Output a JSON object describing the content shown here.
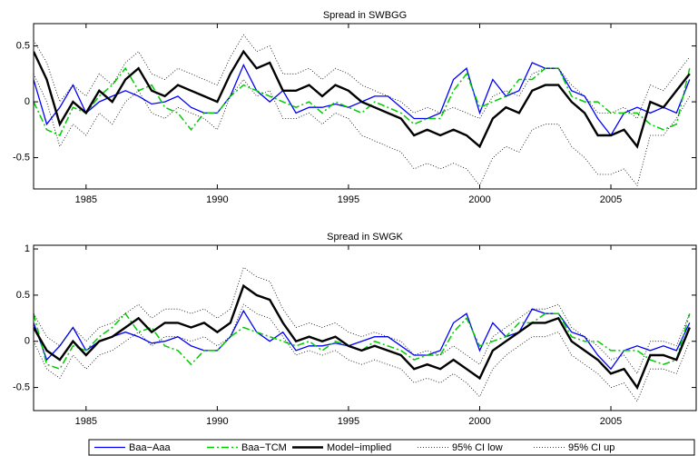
{
  "chart_data": [
    {
      "type": "line",
      "title": "Spread in SWBGG",
      "x": [
        1983,
        1983.5,
        1984,
        1984.5,
        1985,
        1985.5,
        1986,
        1986.5,
        1987,
        1987.5,
        1988,
        1988.5,
        1989,
        1989.5,
        1990,
        1990.5,
        1991,
        1991.5,
        1992,
        1992.5,
        1993,
        1993.5,
        1994,
        1994.5,
        1995,
        1995.5,
        1996,
        1996.5,
        1997,
        1997.5,
        1998,
        1998.5,
        1999,
        1999.5,
        2000,
        2000.5,
        2001,
        2001.5,
        2002,
        2002.5,
        2003,
        2003.5,
        2004,
        2004.5,
        2005,
        2005.5,
        2006,
        2006.5,
        2007,
        2007.5,
        2008
      ],
      "xlim": [
        1983,
        2008.25
      ],
      "ylim": [
        -0.78,
        0.7
      ],
      "xticks": [
        1985,
        1990,
        1995,
        2000,
        2005
      ],
      "yticks": [
        -0.5,
        0,
        0.5
      ],
      "series": [
        {
          "name": "Baa−Aaa",
          "color": "#0000ff",
          "style": "solid",
          "values": [
            0.2,
            -0.2,
            -0.05,
            0.15,
            -0.1,
            0.0,
            0.05,
            0.1,
            0.05,
            -0.02,
            0.0,
            0.05,
            -0.05,
            -0.1,
            -0.1,
            0.05,
            0.33,
            0.1,
            0.0,
            0.1,
            -0.1,
            -0.05,
            -0.05,
            -0.02,
            -0.05,
            0.0,
            0.05,
            0.05,
            -0.05,
            -0.15,
            -0.15,
            -0.1,
            0.2,
            0.3,
            -0.1,
            0.2,
            0.05,
            0.1,
            0.35,
            0.3,
            0.3,
            0.1,
            0.05,
            -0.15,
            -0.3,
            -0.1,
            -0.05,
            -0.1,
            -0.05,
            -0.1,
            0.2
          ]
        },
        {
          "name": "Baa−TCM",
          "color": "#00cc00",
          "style": "dashdot",
          "values": [
            0.0,
            -0.25,
            -0.3,
            -0.05,
            -0.1,
            0.05,
            0.15,
            0.3,
            0.1,
            0.15,
            -0.05,
            -0.1,
            -0.25,
            -0.1,
            -0.1,
            0.05,
            0.15,
            0.1,
            0.05,
            0.0,
            -0.05,
            0.0,
            -0.1,
            0.0,
            -0.05,
            -0.1,
            0.0,
            -0.05,
            -0.1,
            -0.2,
            -0.15,
            -0.15,
            0.1,
            0.25,
            -0.05,
            0.0,
            0.05,
            0.2,
            0.2,
            0.3,
            0.3,
            0.05,
            0.0,
            0.0,
            -0.1,
            -0.1,
            -0.1,
            -0.2,
            -0.25,
            -0.2,
            0.3
          ]
        },
        {
          "name": "Model−implied",
          "color": "#000000",
          "style": "thick",
          "values": [
            0.45,
            0.2,
            -0.2,
            0.0,
            -0.1,
            0.1,
            0.0,
            0.2,
            0.3,
            0.1,
            0.05,
            0.15,
            0.1,
            0.05,
            0.0,
            0.25,
            0.45,
            0.3,
            0.35,
            0.1,
            0.1,
            0.15,
            0.05,
            0.15,
            0.1,
            0.0,
            -0.05,
            -0.1,
            -0.15,
            -0.3,
            -0.25,
            -0.3,
            -0.25,
            -0.3,
            -0.4,
            -0.15,
            -0.05,
            -0.1,
            0.1,
            0.15,
            0.15,
            0.0,
            -0.1,
            -0.3,
            -0.3,
            -0.25,
            -0.4,
            0.0,
            -0.05,
            0.1,
            0.25
          ]
        },
        {
          "name": "95% CI low",
          "color": "#000000",
          "style": "dotted",
          "values": [
            0.25,
            0.0,
            -0.4,
            -0.2,
            -0.3,
            -0.1,
            -0.2,
            0.0,
            0.1,
            -0.1,
            -0.15,
            -0.05,
            -0.1,
            -0.15,
            -0.25,
            0.05,
            0.2,
            0.05,
            0.1,
            -0.15,
            -0.15,
            -0.1,
            -0.2,
            -0.1,
            -0.15,
            -0.3,
            -0.35,
            -0.4,
            -0.45,
            -0.6,
            -0.55,
            -0.6,
            -0.55,
            -0.6,
            -0.75,
            -0.5,
            -0.4,
            -0.45,
            -0.25,
            -0.2,
            -0.2,
            -0.4,
            -0.5,
            -0.65,
            -0.65,
            -0.6,
            -0.75,
            -0.3,
            -0.3,
            -0.15,
            0.05
          ]
        },
        {
          "name": "95% CI up",
          "color": "#000000",
          "style": "dotted",
          "values": [
            0.55,
            0.35,
            0.0,
            0.15,
            0.05,
            0.25,
            0.15,
            0.35,
            0.45,
            0.25,
            0.2,
            0.3,
            0.25,
            0.2,
            0.15,
            0.4,
            0.6,
            0.45,
            0.5,
            0.25,
            0.25,
            0.3,
            0.2,
            0.3,
            0.25,
            0.15,
            0.1,
            0.05,
            0.0,
            -0.1,
            -0.05,
            -0.1,
            -0.05,
            -0.1,
            -0.15,
            0.05,
            0.1,
            0.05,
            0.25,
            0.3,
            0.3,
            0.15,
            0.05,
            -0.1,
            -0.1,
            -0.05,
            -0.15,
            0.15,
            0.1,
            0.25,
            0.4
          ]
        }
      ]
    },
    {
      "type": "line",
      "title": "Spread in SWGK",
      "x": [
        1983,
        1983.5,
        1984,
        1984.5,
        1985,
        1985.5,
        1986,
        1986.5,
        1987,
        1987.5,
        1988,
        1988.5,
        1989,
        1989.5,
        1990,
        1990.5,
        1991,
        1991.5,
        1992,
        1992.5,
        1993,
        1993.5,
        1994,
        1994.5,
        1995,
        1995.5,
        1996,
        1996.5,
        1997,
        1997.5,
        1998,
        1998.5,
        1999,
        1999.5,
        2000,
        2000.5,
        2001,
        2001.5,
        2002,
        2002.5,
        2003,
        2003.5,
        2004,
        2004.5,
        2005,
        2005.5,
        2006,
        2006.5,
        2007,
        2007.5,
        2008
      ],
      "xlim": [
        1983,
        2008.25
      ],
      "ylim": [
        -0.75,
        1.04
      ],
      "xticks": [
        1985,
        1990,
        1995,
        2000,
        2005
      ],
      "yticks": [
        -0.5,
        0,
        0.5,
        1
      ],
      "series": [
        {
          "color": "#0000ff",
          "style": "solid",
          "values": [
            0.2,
            -0.2,
            -0.05,
            0.15,
            -0.1,
            0.0,
            0.05,
            0.1,
            0.05,
            -0.02,
            0.0,
            0.05,
            -0.05,
            -0.1,
            -0.1,
            0.05,
            0.33,
            0.1,
            0.0,
            0.1,
            -0.1,
            -0.05,
            -0.05,
            -0.02,
            -0.05,
            0.0,
            0.05,
            0.05,
            -0.05,
            -0.15,
            -0.15,
            -0.1,
            0.2,
            0.3,
            -0.1,
            0.2,
            0.05,
            0.1,
            0.35,
            0.3,
            0.3,
            0.1,
            0.05,
            -0.15,
            -0.3,
            -0.1,
            -0.05,
            -0.1,
            -0.05,
            -0.1,
            0.2
          ]
        },
        {
          "color": "#00cc00",
          "style": "dashdot",
          "values": [
            0.3,
            -0.25,
            -0.3,
            -0.05,
            -0.1,
            0.05,
            0.15,
            0.3,
            0.1,
            0.15,
            -0.05,
            -0.1,
            -0.25,
            -0.1,
            -0.1,
            0.05,
            0.15,
            0.1,
            0.05,
            0.0,
            -0.05,
            0.0,
            -0.1,
            0.0,
            -0.05,
            -0.1,
            0.0,
            -0.05,
            -0.1,
            -0.2,
            -0.15,
            -0.15,
            0.1,
            0.25,
            -0.05,
            0.0,
            0.05,
            0.2,
            0.2,
            0.3,
            0.3,
            0.05,
            0.0,
            0.0,
            -0.1,
            -0.1,
            -0.1,
            -0.2,
            -0.25,
            -0.2,
            0.3
          ]
        },
        {
          "color": "#000000",
          "style": "thick",
          "values": [
            0.15,
            -0.1,
            -0.2,
            0.0,
            -0.15,
            0.0,
            0.05,
            0.15,
            0.25,
            0.1,
            0.2,
            0.2,
            0.15,
            0.2,
            0.1,
            0.2,
            0.6,
            0.5,
            0.45,
            0.2,
            0.0,
            0.05,
            0.0,
            0.05,
            -0.05,
            -0.1,
            -0.05,
            -0.1,
            -0.15,
            -0.3,
            -0.25,
            -0.3,
            -0.2,
            -0.3,
            -0.4,
            -0.1,
            0.0,
            0.1,
            0.2,
            0.2,
            0.25,
            0.0,
            -0.1,
            -0.2,
            -0.35,
            -0.3,
            -0.5,
            -0.15,
            -0.15,
            -0.2,
            0.15
          ]
        },
        {
          "color": "#000000",
          "style": "dotted",
          "values": [
            0.0,
            -0.3,
            -0.4,
            -0.15,
            -0.3,
            -0.15,
            -0.1,
            0.0,
            0.1,
            -0.05,
            0.05,
            0.05,
            0.0,
            0.05,
            -0.05,
            0.05,
            0.4,
            0.3,
            0.25,
            0.05,
            -0.15,
            -0.1,
            -0.15,
            -0.1,
            -0.2,
            -0.25,
            -0.2,
            -0.25,
            -0.3,
            -0.45,
            -0.4,
            -0.45,
            -0.35,
            -0.45,
            -0.6,
            -0.3,
            -0.15,
            -0.05,
            0.05,
            0.05,
            0.1,
            -0.15,
            -0.25,
            -0.35,
            -0.5,
            -0.45,
            -0.65,
            -0.3,
            -0.3,
            -0.35,
            0.0
          ]
        },
        {
          "color": "#000000",
          "style": "dotted",
          "values": [
            0.3,
            0.05,
            -0.05,
            0.15,
            0.0,
            0.15,
            0.2,
            0.3,
            0.4,
            0.25,
            0.35,
            0.35,
            0.3,
            0.35,
            0.25,
            0.35,
            0.8,
            0.7,
            0.65,
            0.35,
            0.15,
            0.2,
            0.15,
            0.2,
            0.1,
            0.05,
            0.1,
            0.05,
            0.0,
            -0.15,
            -0.1,
            -0.15,
            -0.05,
            -0.15,
            -0.25,
            0.05,
            0.15,
            0.25,
            0.35,
            0.35,
            0.4,
            0.15,
            0.05,
            -0.05,
            -0.2,
            -0.15,
            -0.35,
            0.0,
            0.0,
            -0.05,
            0.3
          ]
        }
      ]
    }
  ]
}
